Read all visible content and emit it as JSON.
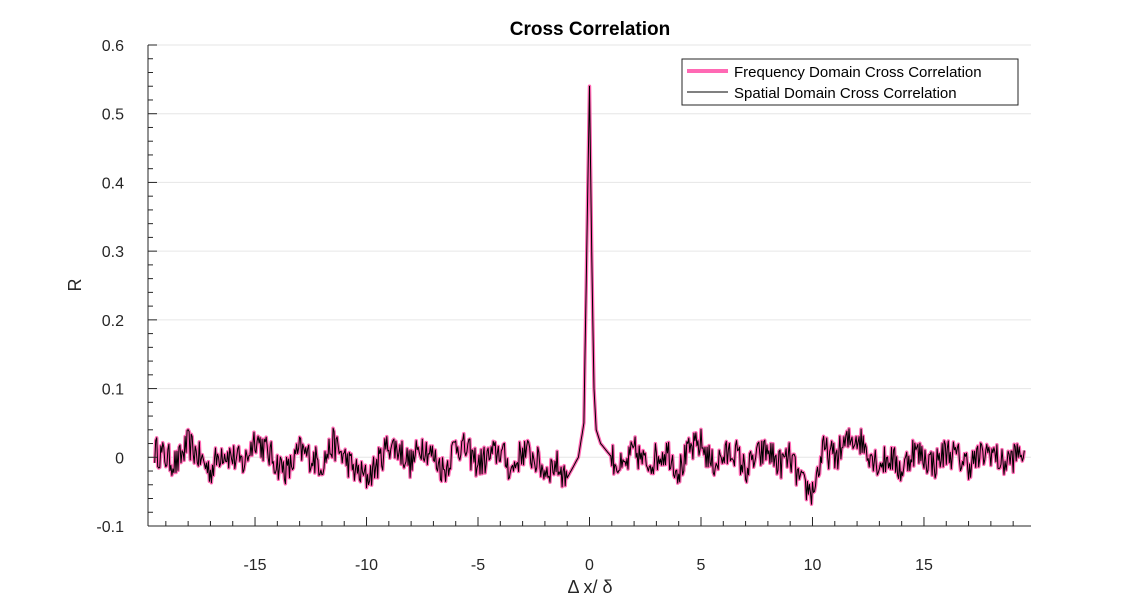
{
  "chart_data": {
    "type": "line",
    "title": "Cross Correlation",
    "xlabel": "Δ x/ δ",
    "ylabel": "R",
    "xlim": [
      -19.8,
      19.8
    ],
    "ylim": [
      -0.1,
      0.6
    ],
    "xticks": [
      -15,
      -10,
      -5,
      0,
      5,
      10,
      15
    ],
    "xtick_labels": [
      "-15",
      "-10",
      "-5",
      "0",
      "5",
      "10",
      "15"
    ],
    "yticks": [
      -0.1,
      0,
      0.1,
      0.2,
      0.3,
      0.4,
      0.5,
      0.6
    ],
    "ytick_labels": [
      "-0.1",
      "0",
      "0.1",
      "0.2",
      "0.3",
      "0.4",
      "0.5",
      "0.6"
    ],
    "grid": "horizontal",
    "legend_location": "top-right",
    "series": [
      {
        "name": "Frequency Domain Cross Correlation",
        "color": "#ff69b4",
        "style": "thick",
        "x": [
          -19.5,
          -19,
          -18.5,
          -18,
          -17.5,
          -17,
          -16.5,
          -16,
          -15.5,
          -15,
          -14.5,
          -14,
          -13.5,
          -13,
          -12.5,
          -12,
          -11.5,
          -11,
          -10.5,
          -10,
          -9.5,
          -9,
          -8.5,
          -8,
          -7.5,
          -7,
          -6.5,
          -6,
          -5.5,
          -5,
          -4.5,
          -4,
          -3.5,
          -3,
          -2.5,
          -2,
          -1.5,
          -1,
          -0.5,
          -0.25,
          -0.1,
          0,
          0.1,
          0.2,
          0.3,
          0.5,
          1,
          1.5,
          2,
          2.5,
          3,
          3.5,
          4,
          4.5,
          5,
          5.5,
          6,
          6.5,
          7,
          7.5,
          8,
          8.5,
          9,
          9.5,
          10,
          10.5,
          11,
          11.5,
          12,
          12.5,
          13,
          13.5,
          14,
          14.5,
          15,
          15.5,
          16,
          16.5,
          17,
          17.5,
          18,
          18.5,
          19,
          19.5
        ],
        "y": [
          0.01,
          0.0,
          -0.01,
          0.02,
          0.0,
          -0.02,
          0.01,
          0.0,
          -0.01,
          0.03,
          0.01,
          -0.01,
          -0.02,
          0.01,
          0.0,
          -0.01,
          0.02,
          0.0,
          -0.02,
          -0.03,
          -0.01,
          0.02,
          0.01,
          -0.01,
          0.02,
          0.0,
          -0.02,
          0.02,
          0.01,
          -0.01,
          0.0,
          0.01,
          -0.02,
          0.01,
          0.0,
          -0.02,
          -0.01,
          -0.03,
          0.0,
          0.05,
          0.35,
          0.54,
          0.3,
          0.1,
          0.04,
          0.02,
          0.0,
          -0.02,
          0.01,
          -0.01,
          0.0,
          0.01,
          -0.02,
          0.01,
          0.02,
          -0.01,
          0.0,
          0.01,
          -0.02,
          0.0,
          0.01,
          -0.01,
          0.0,
          -0.04,
          -0.05,
          0.01,
          0.0,
          0.02,
          0.03,
          0.01,
          -0.01,
          0.0,
          -0.02,
          0.01,
          0.0,
          -0.01,
          0.01,
          0.0,
          -0.01,
          0.0,
          0.01,
          -0.01,
          0.0,
          0.01
        ]
      },
      {
        "name": "Spatial Domain Cross Correlation",
        "color": "#000000",
        "style": "thin",
        "x": [
          -19.5,
          -19,
          -18.5,
          -18,
          -17.5,
          -17,
          -16.5,
          -16,
          -15.5,
          -15,
          -14.5,
          -14,
          -13.5,
          -13,
          -12.5,
          -12,
          -11.5,
          -11,
          -10.5,
          -10,
          -9.5,
          -9,
          -8.5,
          -8,
          -7.5,
          -7,
          -6.5,
          -6,
          -5.5,
          -5,
          -4.5,
          -4,
          -3.5,
          -3,
          -2.5,
          -2,
          -1.5,
          -1,
          -0.5,
          -0.25,
          -0.1,
          0,
          0.1,
          0.2,
          0.3,
          0.5,
          1,
          1.5,
          2,
          2.5,
          3,
          3.5,
          4,
          4.5,
          5,
          5.5,
          6,
          6.5,
          7,
          7.5,
          8,
          8.5,
          9,
          9.5,
          10,
          10.5,
          11,
          11.5,
          12,
          12.5,
          13,
          13.5,
          14,
          14.5,
          15,
          15.5,
          16,
          16.5,
          17,
          17.5,
          18,
          18.5,
          19,
          19.5
        ],
        "y": [
          0.01,
          0.0,
          -0.01,
          0.02,
          0.0,
          -0.02,
          0.01,
          0.0,
          -0.01,
          0.03,
          0.01,
          -0.01,
          -0.02,
          0.01,
          0.0,
          -0.01,
          0.02,
          0.0,
          -0.02,
          -0.03,
          -0.01,
          0.02,
          0.01,
          -0.01,
          0.02,
          0.0,
          -0.02,
          0.02,
          0.01,
          -0.01,
          0.0,
          0.01,
          -0.02,
          0.01,
          0.0,
          -0.02,
          -0.01,
          -0.03,
          0.0,
          0.05,
          0.35,
          0.54,
          0.3,
          0.1,
          0.04,
          0.02,
          0.0,
          -0.02,
          0.01,
          -0.01,
          0.0,
          0.01,
          -0.02,
          0.01,
          0.02,
          -0.01,
          0.0,
          0.01,
          -0.02,
          0.0,
          0.01,
          -0.01,
          0.0,
          -0.04,
          -0.05,
          0.01,
          0.0,
          0.02,
          0.03,
          0.01,
          -0.01,
          0.0,
          -0.02,
          0.01,
          0.0,
          -0.01,
          0.01,
          0.0,
          -0.01,
          0.0,
          0.01,
          -0.01,
          0.0,
          0.01
        ]
      }
    ]
  }
}
